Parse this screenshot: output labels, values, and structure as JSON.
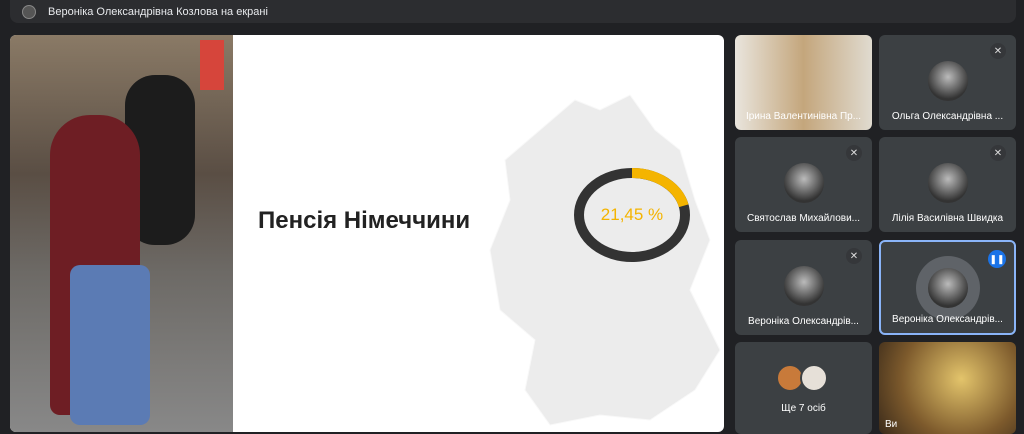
{
  "header": {
    "presenting_text": "Вероніка Олександрівна Козлова на екрані"
  },
  "slide": {
    "title": "Пенсія Німеччини",
    "percent_label": "21,45 %",
    "percent_value": 21.45,
    "accent_color": "#f4b400",
    "ring_color": "#333333"
  },
  "participants": [
    {
      "name": "Ірина Валентинівна Пр...",
      "video": true
    },
    {
      "name": "Ольга Олександрівна ...",
      "muted": true
    },
    {
      "name": "Святослав Михайлови...",
      "muted": true
    },
    {
      "name": "Лілія Василівна Швидка",
      "muted": true
    },
    {
      "name": "Вероніка Олександрів...",
      "muted": true
    },
    {
      "name": "Вероніка Олександрів...",
      "speaking": true
    },
    {
      "name": "Ще 7 осіб"
    },
    {
      "name": "Ви",
      "video": true,
      "muted": true
    }
  ],
  "icons": {
    "muted": "mic-off-icon",
    "speaking": "audio-level-icon"
  }
}
